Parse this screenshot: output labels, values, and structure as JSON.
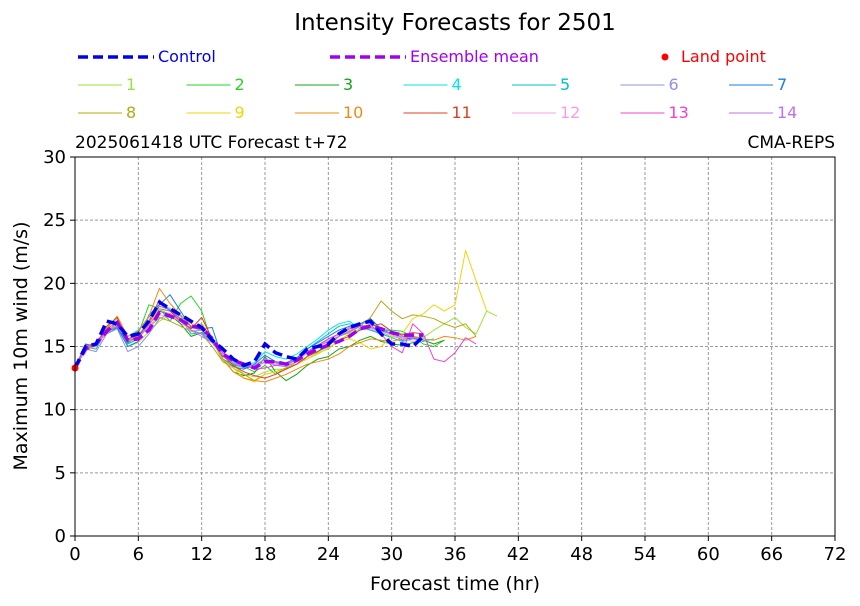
{
  "chart_data": {
    "type": "line",
    "title": "Intensity Forecasts for 2501",
    "subtitle_left": "2025061418 UTC Forecast t+72",
    "subtitle_right": "CMA-REPS",
    "xlabel": "Forecast time (hr)",
    "ylabel": "Maximum 10m wind (m/s)",
    "xlim": [
      0,
      72
    ],
    "ylim": [
      0,
      30
    ],
    "xticks": [
      0,
      6,
      12,
      18,
      24,
      30,
      36,
      42,
      48,
      54,
      60,
      66,
      72
    ],
    "yticks": [
      0,
      5,
      10,
      15,
      20,
      25,
      30
    ],
    "grid": true,
    "legend_position": "top",
    "legend_special": [
      {
        "label": "Control",
        "color": "#0000ee",
        "style": "dashed"
      },
      {
        "label": "Ensemble mean",
        "color": "#a000f0",
        "style": "dashed"
      },
      {
        "label": "Land point",
        "color": "#ff0000",
        "style": "dot"
      }
    ],
    "control": {
      "name": "Control",
      "color": "#0000ee",
      "x": [
        0,
        1,
        2,
        3,
        4,
        5,
        6,
        7,
        8,
        9,
        10,
        11,
        12,
        13,
        14,
        15,
        16,
        17,
        18,
        19,
        20,
        21,
        22,
        23,
        24,
        25,
        26,
        27,
        28,
        29,
        30,
        31,
        32,
        33
      ],
      "y": [
        13.3,
        15.0,
        15.2,
        17.0,
        16.8,
        15.8,
        16.0,
        17.0,
        18.5,
        18.0,
        17.5,
        17.0,
        16.5,
        15.5,
        14.8,
        14.0,
        13.5,
        13.8,
        15.2,
        14.5,
        14.2,
        14.0,
        14.8,
        15.0,
        15.2,
        16.0,
        16.5,
        16.8,
        17.0,
        16.0,
        15.2,
        15.2,
        15.0,
        15.8
      ]
    },
    "ensemble_mean": {
      "name": "Ensemble mean",
      "color": "#a000f0",
      "x": [
        0,
        1,
        2,
        3,
        4,
        5,
        6,
        7,
        8,
        9,
        10,
        11,
        12,
        13,
        14,
        15,
        16,
        17,
        18,
        19,
        20,
        21,
        22,
        23,
        24,
        25,
        26,
        27,
        28,
        29,
        30,
        31,
        32,
        33
      ],
      "y": [
        13.3,
        14.8,
        15.2,
        16.2,
        16.9,
        15.5,
        15.6,
        16.3,
        17.7,
        17.4,
        17.1,
        16.6,
        16.5,
        15.6,
        14.4,
        13.9,
        13.6,
        13.3,
        13.8,
        13.8,
        13.6,
        13.9,
        14.4,
        14.8,
        15.1,
        15.4,
        15.8,
        16.4,
        16.6,
        16.4,
        16.1,
        15.9,
        15.9,
        15.9
      ]
    },
    "land_point": {
      "x": 0,
      "y": 13.3,
      "color": "#ff0000"
    },
    "members": [
      {
        "name": "1",
        "color": "#9be33a",
        "x": [
          0,
          1,
          2,
          3,
          4,
          5,
          6,
          7,
          8,
          9,
          10,
          11,
          12,
          13,
          14,
          15,
          16,
          17,
          18,
          19,
          20,
          21,
          22,
          23,
          24,
          25,
          26,
          27,
          28,
          29,
          30,
          31,
          32,
          33,
          34,
          35,
          36,
          37,
          38,
          39,
          40
        ],
        "y": [
          13.3,
          14.8,
          15.0,
          16.5,
          17.2,
          15.0,
          15.3,
          16.2,
          17.0,
          17.5,
          16.8,
          16.5,
          16.3,
          15.5,
          13.8,
          13.5,
          12.8,
          12.6,
          13.0,
          13.2,
          13.2,
          13.8,
          14.0,
          14.5,
          14.8,
          15.5,
          16.0,
          16.4,
          16.3,
          16.0,
          15.8,
          15.6,
          15.8,
          15.7,
          16.3,
          16.8,
          17.3,
          16.5,
          16.0,
          17.8,
          17.4
        ]
      },
      {
        "name": "2",
        "color": "#2ad12a",
        "x": [
          0,
          1,
          2,
          3,
          4,
          5,
          6,
          7,
          8,
          9,
          10,
          11,
          12,
          13,
          14,
          15,
          16,
          17,
          18,
          19,
          20,
          21,
          22,
          23,
          24,
          25,
          26,
          27,
          28,
          29,
          30,
          31,
          32,
          33,
          34,
          35
        ],
        "y": [
          13.3,
          15.1,
          15.2,
          16.0,
          16.5,
          15.5,
          16.0,
          18.3,
          18.0,
          17.0,
          18.4,
          19.0,
          17.8,
          15.3,
          14.3,
          13.5,
          13.4,
          13.0,
          13.5,
          12.8,
          13.3,
          13.6,
          14.2,
          14.6,
          15.0,
          15.8,
          16.2,
          16.8,
          17.0,
          16.2,
          16.3,
          16.2,
          15.8,
          15.2,
          15.0,
          15.5
        ]
      },
      {
        "name": "3",
        "color": "#14a314",
        "x": [
          0,
          1,
          2,
          3,
          4,
          5,
          6,
          7,
          8,
          9,
          10,
          11,
          12,
          13,
          14,
          15,
          16,
          17,
          18,
          19,
          20,
          21,
          22,
          23,
          24,
          25,
          26,
          27,
          28,
          29,
          30,
          31,
          32,
          33,
          34,
          35
        ],
        "y": [
          13.3,
          15.0,
          15.1,
          16.2,
          16.8,
          15.3,
          15.8,
          17.0,
          17.8,
          17.5,
          16.8,
          15.8,
          16.1,
          15.8,
          14.0,
          13.0,
          12.7,
          12.9,
          14.2,
          13.0,
          12.3,
          12.8,
          13.5,
          14.0,
          14.2,
          14.8,
          15.0,
          15.5,
          15.8,
          15.4,
          15.2,
          15.1,
          15.3,
          15.5,
          15.2,
          15.5
        ]
      },
      {
        "name": "4",
        "color": "#00e5e5",
        "x": [
          0,
          1,
          2,
          3,
          4,
          5,
          6,
          7,
          8,
          9,
          10,
          11,
          12,
          13,
          14,
          15,
          16,
          17,
          18,
          19,
          20,
          21,
          22,
          23,
          24,
          25,
          26,
          27,
          28,
          29,
          30,
          31,
          32,
          33,
          34
        ],
        "y": [
          13.3,
          15.0,
          15.3,
          16.0,
          16.9,
          15.8,
          16.3,
          17.3,
          18.4,
          18.0,
          17.4,
          16.2,
          16.3,
          15.7,
          14.5,
          14.0,
          13.6,
          13.7,
          14.6,
          14.2,
          14.0,
          14.4,
          15.0,
          15.6,
          16.3,
          16.8,
          17.0,
          16.4,
          16.8,
          16.5,
          16.2,
          16.0,
          15.8,
          15.4,
          15.6
        ]
      },
      {
        "name": "5",
        "color": "#00c0c8",
        "x": [
          0,
          1,
          2,
          3,
          4,
          5,
          6,
          7,
          8,
          9,
          10,
          11,
          12,
          13,
          14,
          15,
          16,
          17,
          18,
          19,
          20,
          21,
          22,
          23,
          24,
          25,
          26,
          27,
          28,
          29,
          30,
          31,
          32,
          33
        ],
        "y": [
          13.3,
          14.9,
          14.8,
          16.3,
          16.6,
          15.2,
          15.6,
          16.9,
          18.0,
          17.8,
          17.2,
          16.0,
          16.1,
          15.4,
          14.0,
          13.6,
          13.3,
          13.5,
          14.0,
          13.8,
          13.5,
          14.0,
          14.8,
          15.4,
          16.0,
          16.6,
          16.8,
          16.6,
          16.3,
          16.0,
          15.7,
          15.4,
          15.6,
          15.8
        ]
      },
      {
        "name": "6",
        "color": "#9090e0",
        "x": [
          0,
          1,
          2,
          3,
          4,
          5,
          6,
          7,
          8,
          9,
          10,
          11,
          12,
          13,
          14,
          15,
          16,
          17,
          18,
          19,
          20,
          21,
          22,
          23,
          24,
          25,
          26,
          27,
          28,
          29,
          30,
          31,
          32,
          33
        ],
        "y": [
          13.3,
          14.8,
          14.6,
          16.0,
          16.4,
          14.6,
          15.0,
          16.0,
          17.2,
          17.6,
          17.0,
          16.3,
          15.8,
          15.3,
          14.2,
          13.7,
          13.3,
          13.4,
          13.8,
          13.5,
          13.4,
          13.8,
          14.5,
          15.0,
          15.6,
          16.0,
          16.5,
          16.7,
          16.5,
          16.2,
          16.0,
          15.7,
          15.6,
          15.5
        ]
      },
      {
        "name": "7",
        "color": "#1a7ee0",
        "x": [
          0,
          1,
          2,
          3,
          4,
          5,
          6,
          7,
          8,
          9,
          10,
          11,
          12,
          13,
          14,
          15,
          16,
          17,
          18,
          19,
          20,
          21,
          22,
          23,
          24,
          25,
          26,
          27,
          28,
          29,
          30,
          31,
          32,
          33
        ],
        "y": [
          13.3,
          15.2,
          15.0,
          16.2,
          16.5,
          15.0,
          15.4,
          17.5,
          18.3,
          19.1,
          17.8,
          16.5,
          16.4,
          16.5,
          14.0,
          13.4,
          13.2,
          13.6,
          14.3,
          13.8,
          13.7,
          14.1,
          14.8,
          15.3,
          15.8,
          16.3,
          16.6,
          16.8,
          17.2,
          16.4,
          16.0,
          15.5,
          15.7,
          15.4
        ]
      },
      {
        "name": "8",
        "color": "#b5a814",
        "x": [
          0,
          1,
          2,
          3,
          4,
          5,
          6,
          7,
          8,
          9,
          10,
          11,
          12,
          13,
          14,
          15,
          16,
          17,
          18,
          19,
          20,
          21,
          22,
          23,
          24,
          25,
          26,
          27,
          28,
          29,
          30,
          31,
          32,
          33,
          34,
          35,
          36,
          37,
          38
        ],
        "y": [
          13.3,
          14.9,
          15.2,
          16.0,
          17.0,
          15.6,
          15.8,
          16.5,
          17.3,
          17.0,
          16.6,
          16.2,
          16.0,
          15.0,
          13.8,
          13.3,
          12.8,
          12.3,
          12.8,
          13.0,
          13.3,
          13.6,
          14.2,
          14.6,
          15.3,
          15.8,
          16.1,
          16.6,
          17.3,
          18.6,
          17.8,
          17.2,
          17.5,
          17.4,
          17.2,
          16.8,
          16.5,
          16.8,
          15.8
        ]
      },
      {
        "name": "9",
        "color": "#f0d40a",
        "x": [
          0,
          1,
          2,
          3,
          4,
          5,
          6,
          7,
          8,
          9,
          10,
          11,
          12,
          13,
          14,
          15,
          16,
          17,
          18,
          19,
          20,
          21,
          22,
          23,
          24,
          25,
          26,
          27,
          28,
          29,
          30,
          31,
          32,
          33,
          34,
          35,
          36,
          37,
          38,
          39
        ],
        "y": [
          13.3,
          14.7,
          15.0,
          16.2,
          16.6,
          15.5,
          15.6,
          16.8,
          18.0,
          17.5,
          17.2,
          16.8,
          16.5,
          15.4,
          14.0,
          13.3,
          12.5,
          12.2,
          12.8,
          13.0,
          13.2,
          13.6,
          14.0,
          14.4,
          14.9,
          15.4,
          15.6,
          15.3,
          14.8,
          15.0,
          15.8,
          16.0,
          17.2,
          17.6,
          18.3,
          17.8,
          18.3,
          22.6,
          20.2,
          17.8
        ]
      },
      {
        "name": "10",
        "color": "#f08a14",
        "x": [
          0,
          1,
          2,
          3,
          4,
          5,
          6,
          7,
          8,
          9,
          10,
          11,
          12,
          13,
          14,
          15,
          16,
          17,
          18,
          19,
          20,
          21,
          22,
          23,
          24,
          25,
          26,
          27,
          28,
          29,
          30,
          31,
          32,
          33,
          34,
          35,
          36,
          37,
          38
        ],
        "y": [
          13.3,
          14.8,
          15.1,
          16.4,
          17.4,
          15.8,
          16.2,
          17.4,
          19.6,
          18.4,
          17.5,
          16.6,
          16.8,
          15.6,
          14.0,
          13.0,
          12.5,
          12.3,
          12.2,
          12.5,
          12.8,
          13.2,
          13.6,
          13.8,
          14.0,
          14.4,
          15.0,
          15.3,
          15.6,
          15.5,
          15.4,
          15.6,
          15.8,
          15.6,
          15.5,
          15.8,
          15.7,
          15.5,
          15.8
        ]
      },
      {
        "name": "11",
        "color": "#e04020",
        "x": [
          0,
          1,
          2,
          3,
          4,
          5,
          6,
          7,
          8,
          9,
          10,
          11,
          12,
          13,
          14,
          15,
          16,
          17,
          18,
          19,
          20,
          21,
          22,
          23,
          24,
          25,
          26,
          27,
          28,
          29,
          30,
          31,
          32,
          33
        ],
        "y": [
          13.3,
          14.8,
          15.2,
          16.6,
          17.3,
          15.4,
          15.8,
          17.0,
          18.7,
          17.8,
          17.0,
          16.4,
          17.3,
          15.6,
          14.3,
          13.5,
          13.0,
          12.7,
          12.5,
          12.8,
          13.2,
          13.6,
          14.2,
          14.6,
          15.2,
          15.5,
          15.8,
          16.3,
          16.6,
          16.8,
          16.2,
          15.9,
          16.1,
          16.0
        ]
      },
      {
        "name": "12",
        "color": "#f4a0e8",
        "x": [
          0,
          1,
          2,
          3,
          4,
          5,
          6,
          7,
          8,
          9,
          10,
          11,
          12,
          13,
          14,
          15,
          16,
          17,
          18,
          19,
          20,
          21,
          22,
          23,
          24,
          25,
          26,
          27,
          28,
          29,
          30,
          31,
          32,
          33
        ],
        "y": [
          13.3,
          14.9,
          15.0,
          16.1,
          16.7,
          15.4,
          15.7,
          16.6,
          17.5,
          17.4,
          17.0,
          16.2,
          16.4,
          15.5,
          14.4,
          13.8,
          13.5,
          13.4,
          13.7,
          13.6,
          13.5,
          13.8,
          14.5,
          15.0,
          15.5,
          15.9,
          16.3,
          16.6,
          16.4,
          16.1,
          15.9,
          15.6,
          15.4,
          15.5
        ]
      },
      {
        "name": "13",
        "color": "#f040d0",
        "x": [
          0,
          1,
          2,
          3,
          4,
          5,
          6,
          7,
          8,
          9,
          10,
          11,
          12,
          13,
          14,
          15,
          16,
          17,
          18,
          19,
          20,
          21,
          22,
          23,
          24,
          25,
          26,
          27,
          28,
          29,
          30,
          31,
          32,
          33,
          34,
          35,
          36,
          37,
          38
        ],
        "y": [
          13.3,
          15.0,
          15.3,
          16.4,
          16.9,
          15.6,
          15.9,
          16.9,
          18.2,
          17.9,
          17.2,
          16.6,
          16.3,
          15.5,
          14.5,
          13.9,
          13.6,
          13.2,
          13.3,
          13.5,
          13.6,
          14.0,
          14.6,
          15.1,
          15.6,
          16.0,
          16.4,
          16.6,
          16.7,
          16.0,
          15.0,
          14.5,
          16.8,
          16.0,
          14.0,
          13.8,
          14.5,
          15.7,
          15.2
        ]
      },
      {
        "name": "14",
        "color": "#c070f0",
        "x": [
          0,
          1,
          2,
          3,
          4,
          5,
          6,
          7,
          8,
          9,
          10,
          11,
          12,
          13,
          14,
          15,
          16,
          17,
          18,
          19,
          20,
          21,
          22,
          23,
          24,
          25,
          26,
          27,
          28,
          29,
          30,
          31,
          32,
          33
        ],
        "y": [
          13.3,
          14.8,
          15.1,
          16.2,
          16.6,
          15.5,
          15.6,
          16.7,
          17.8,
          17.6,
          17.0,
          16.3,
          16.0,
          15.3,
          14.3,
          13.7,
          13.4,
          13.5,
          14.0,
          13.7,
          13.5,
          14.0,
          14.6,
          15.0,
          15.4,
          15.8,
          16.2,
          16.6,
          16.5,
          16.3,
          16.0,
          15.8,
          15.7,
          15.6
        ]
      }
    ]
  }
}
